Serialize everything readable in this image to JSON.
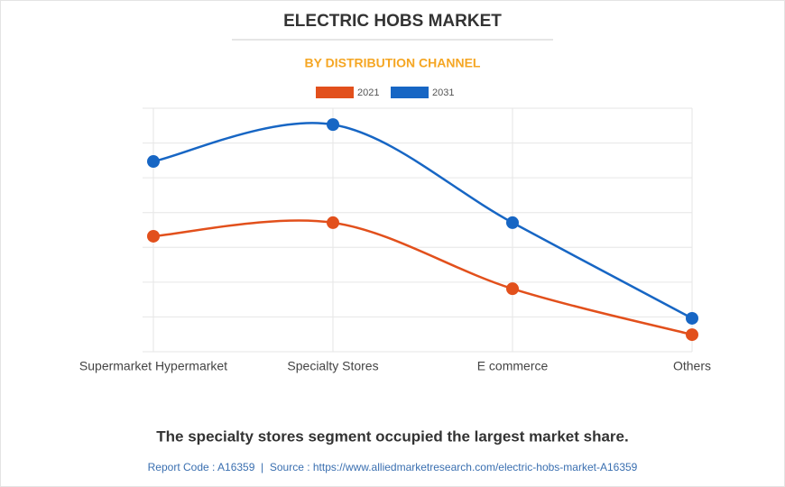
{
  "chart_data": {
    "type": "line",
    "title": "ELECTRIC HOBS MARKET",
    "subtitle": "BY DISTRIBUTION CHANNEL",
    "categories": [
      "Supermarket Hypermarket",
      "Specialty Stores",
      "E commerce",
      "Others"
    ],
    "series": [
      {
        "name": "2021",
        "color": "#e2501c",
        "values": [
          3.32,
          3.71,
          1.81,
          0.49
        ]
      },
      {
        "name": "2031",
        "color": "#1766c4",
        "values": [
          5.47,
          6.53,
          3.71,
          0.96
        ]
      }
    ],
    "ylim": [
      0,
      7
    ],
    "ygrid": [
      0,
      1,
      2,
      3,
      4,
      5,
      6,
      7
    ],
    "grid": true,
    "smooth": true,
    "legend": "top",
    "note": "The specialty stores segment occupied the largest market share.",
    "source": "Report Code : A16359  |  Source : https://www.alliedmarketresearch.com/electric-hobs-market-A16359"
  }
}
